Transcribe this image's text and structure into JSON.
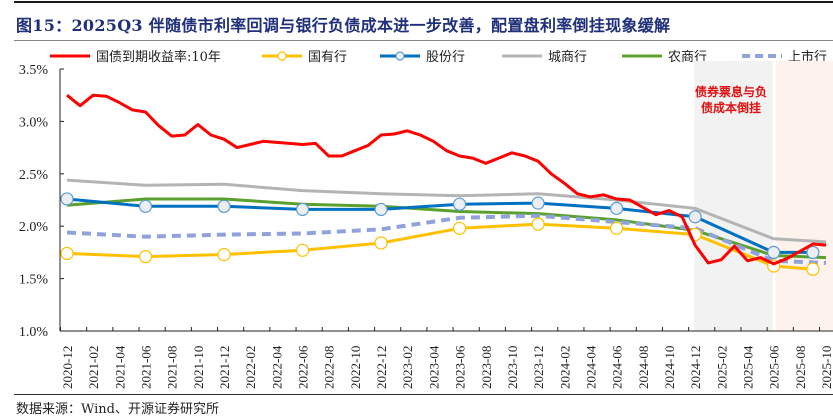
{
  "title": "图15：2025Q3 伴随债市利率回调与银行负债成本进一步改善，配置盘利率倒挂现象缓解",
  "source": "数据来源：Wind、开源证券研究所",
  "chart_data": {
    "type": "line",
    "title": "图15：2025Q3 伴随债市利率回调与银行负债成本进一步改善，配置盘利率倒挂现象缓解",
    "xlabel": "",
    "ylabel": "",
    "ylim": [
      1.0,
      3.5
    ],
    "yticks": [
      "1.0%",
      "1.5%",
      "2.0%",
      "2.5%",
      "3.0%",
      "3.5%"
    ],
    "ytick_values": [
      1.0,
      1.5,
      2.0,
      2.5,
      3.0,
      3.5
    ],
    "grid": false,
    "legend_position": "top",
    "xticks": [
      "2020-12",
      "2021-02",
      "2021-04",
      "2021-06",
      "2021-08",
      "2021-10",
      "2021-12",
      "2022-02",
      "2022-04",
      "2022-06",
      "2022-08",
      "2022-10",
      "2022-12",
      "2023-02",
      "2023-04",
      "2023-06",
      "2023-08",
      "2023-10",
      "2023-12",
      "2024-02",
      "2024-04",
      "2024-06",
      "2024-08",
      "2024-10",
      "2024-12",
      "2025-02",
      "2025-04",
      "2025-06",
      "2025-08",
      "2025-10"
    ],
    "x_months": [
      "2020-12",
      "2021-01",
      "2021-02",
      "2021-03",
      "2021-04",
      "2021-05",
      "2021-06",
      "2021-07",
      "2021-08",
      "2021-09",
      "2021-10",
      "2021-11",
      "2021-12",
      "2022-01",
      "2022-02",
      "2022-03",
      "2022-04",
      "2022-05",
      "2022-06",
      "2022-07",
      "2022-08",
      "2022-09",
      "2022-10",
      "2022-11",
      "2022-12",
      "2023-01",
      "2023-02",
      "2023-03",
      "2023-04",
      "2023-05",
      "2023-06",
      "2023-07",
      "2023-08",
      "2023-09",
      "2023-10",
      "2023-11",
      "2023-12",
      "2024-01",
      "2024-02",
      "2024-03",
      "2024-04",
      "2024-05",
      "2024-06",
      "2024-07",
      "2024-08",
      "2024-09",
      "2024-10",
      "2024-11",
      "2024-12",
      "2025-01",
      "2025-02",
      "2025-03",
      "2025-04",
      "2025-05",
      "2025-06",
      "2025-07",
      "2025-08",
      "2025-09",
      "2025-10"
    ],
    "shaded_regions": [
      {
        "from": "2024-12",
        "to": "2025-06",
        "color": "#f2f2f2",
        "label": "债券票息与负债成本倒挂"
      },
      {
        "from": "2025-06",
        "to": "2025-10",
        "color": "#fdf2ec",
        "label": ""
      }
    ],
    "annotation": "债券票息与负\n债成本倒挂",
    "series": [
      {
        "name": "国债到期收益率:10年",
        "color": "#ff0000",
        "style": "solid",
        "marker": false,
        "x": [
          "2020-12",
          "2021-01",
          "2021-02",
          "2021-03",
          "2021-04",
          "2021-05",
          "2021-06",
          "2021-07",
          "2021-08",
          "2021-09",
          "2021-10",
          "2021-11",
          "2021-12",
          "2022-01",
          "2022-02",
          "2022-03",
          "2022-04",
          "2022-05",
          "2022-06",
          "2022-07",
          "2022-08",
          "2022-09",
          "2022-10",
          "2022-11",
          "2022-12",
          "2023-01",
          "2023-02",
          "2023-03",
          "2023-04",
          "2023-05",
          "2023-06",
          "2023-07",
          "2023-08",
          "2023-09",
          "2023-10",
          "2023-11",
          "2023-12",
          "2024-01",
          "2024-02",
          "2024-03",
          "2024-04",
          "2024-05",
          "2024-06",
          "2024-07",
          "2024-08",
          "2024-09",
          "2024-10",
          "2024-11",
          "2024-12",
          "2025-01",
          "2025-02",
          "2025-03",
          "2025-04",
          "2025-05",
          "2025-06",
          "2025-07",
          "2025-08",
          "2025-09",
          "2025-10"
        ],
        "values": [
          3.25,
          3.15,
          3.25,
          3.24,
          3.18,
          3.11,
          3.09,
          2.96,
          2.86,
          2.87,
          2.97,
          2.87,
          2.83,
          2.75,
          2.78,
          2.81,
          2.8,
          2.79,
          2.78,
          2.79,
          2.67,
          2.67,
          2.72,
          2.77,
          2.87,
          2.88,
          2.91,
          2.87,
          2.81,
          2.72,
          2.67,
          2.65,
          2.6,
          2.65,
          2.7,
          2.67,
          2.62,
          2.5,
          2.41,
          2.31,
          2.28,
          2.3,
          2.26,
          2.25,
          2.18,
          2.11,
          2.15,
          2.09,
          1.82,
          1.65,
          1.68,
          1.81,
          1.67,
          1.7,
          1.64,
          1.69,
          1.76,
          1.83,
          1.82
        ]
      },
      {
        "name": "国有行",
        "color": "#ffc000",
        "style": "solid",
        "marker": true,
        "x": [
          "2020-12",
          "2021-06",
          "2021-12",
          "2022-06",
          "2022-12",
          "2023-06",
          "2023-12",
          "2024-06",
          "2024-12",
          "2025-06",
          "2025-09"
        ],
        "values": [
          1.74,
          1.71,
          1.73,
          1.77,
          1.84,
          1.98,
          2.02,
          1.98,
          1.92,
          1.62,
          1.59
        ]
      },
      {
        "name": "股份行",
        "color": "#0070c0",
        "style": "solid",
        "marker": true,
        "x": [
          "2020-12",
          "2021-06",
          "2021-12",
          "2022-06",
          "2022-12",
          "2023-06",
          "2023-12",
          "2024-06",
          "2024-12",
          "2025-06",
          "2025-09"
        ],
        "values": [
          2.26,
          2.19,
          2.19,
          2.16,
          2.16,
          2.21,
          2.22,
          2.17,
          2.09,
          1.75,
          1.75
        ]
      },
      {
        "name": "城商行",
        "color": "#b4b4b4",
        "style": "solid",
        "marker": false,
        "x": [
          "2020-12",
          "2021-06",
          "2021-12",
          "2022-06",
          "2022-12",
          "2023-06",
          "2023-12",
          "2024-06",
          "2024-12",
          "2025-06",
          "2025-10"
        ],
        "values": [
          2.44,
          2.39,
          2.4,
          2.34,
          2.31,
          2.29,
          2.31,
          2.25,
          2.17,
          1.88,
          1.85
        ]
      },
      {
        "name": "农商行",
        "color": "#5aa02c",
        "style": "solid",
        "marker": false,
        "x": [
          "2020-12",
          "2021-06",
          "2021-12",
          "2022-06",
          "2022-12",
          "2023-06",
          "2023-12",
          "2024-06",
          "2024-12",
          "2025-06",
          "2025-10"
        ],
        "values": [
          2.2,
          2.26,
          2.26,
          2.21,
          2.19,
          2.14,
          2.12,
          2.06,
          1.96,
          1.72,
          1.7
        ]
      },
      {
        "name": "上市行",
        "color": "#8fa2db",
        "style": "dashed",
        "marker": false,
        "x": [
          "2020-12",
          "2021-06",
          "2021-12",
          "2022-06",
          "2022-12",
          "2023-06",
          "2023-12",
          "2024-06",
          "2024-12",
          "2025-06",
          "2025-10"
        ],
        "values": [
          1.94,
          1.9,
          1.92,
          1.93,
          1.97,
          2.08,
          2.1,
          2.04,
          1.98,
          1.67,
          1.65
        ]
      }
    ]
  }
}
